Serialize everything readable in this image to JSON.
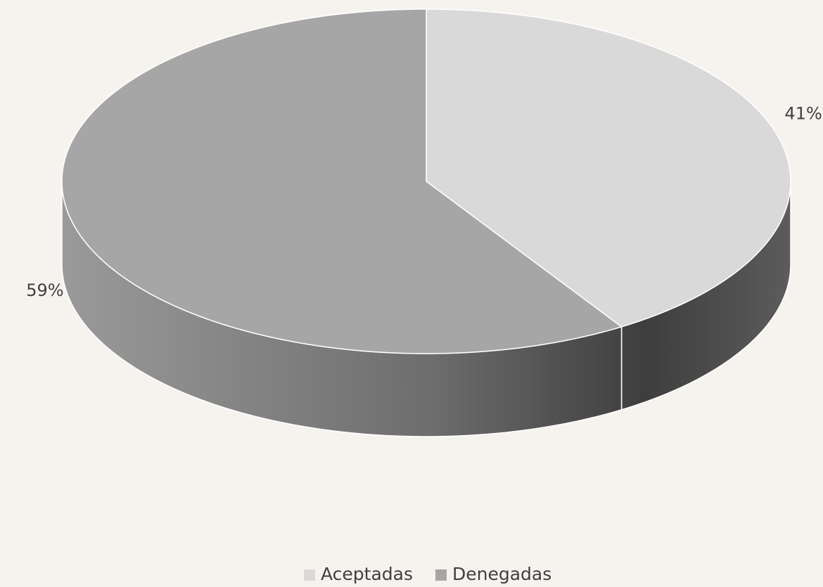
{
  "chart_data": {
    "type": "pie3d",
    "categories": [
      "Aceptadas",
      "Denegadas"
    ],
    "values": [
      41,
      59
    ],
    "value_labels": [
      "41%",
      "59%"
    ],
    "colors": [
      "#d9d9d9",
      "#a6a6a6"
    ],
    "legend": "bottom"
  }
}
